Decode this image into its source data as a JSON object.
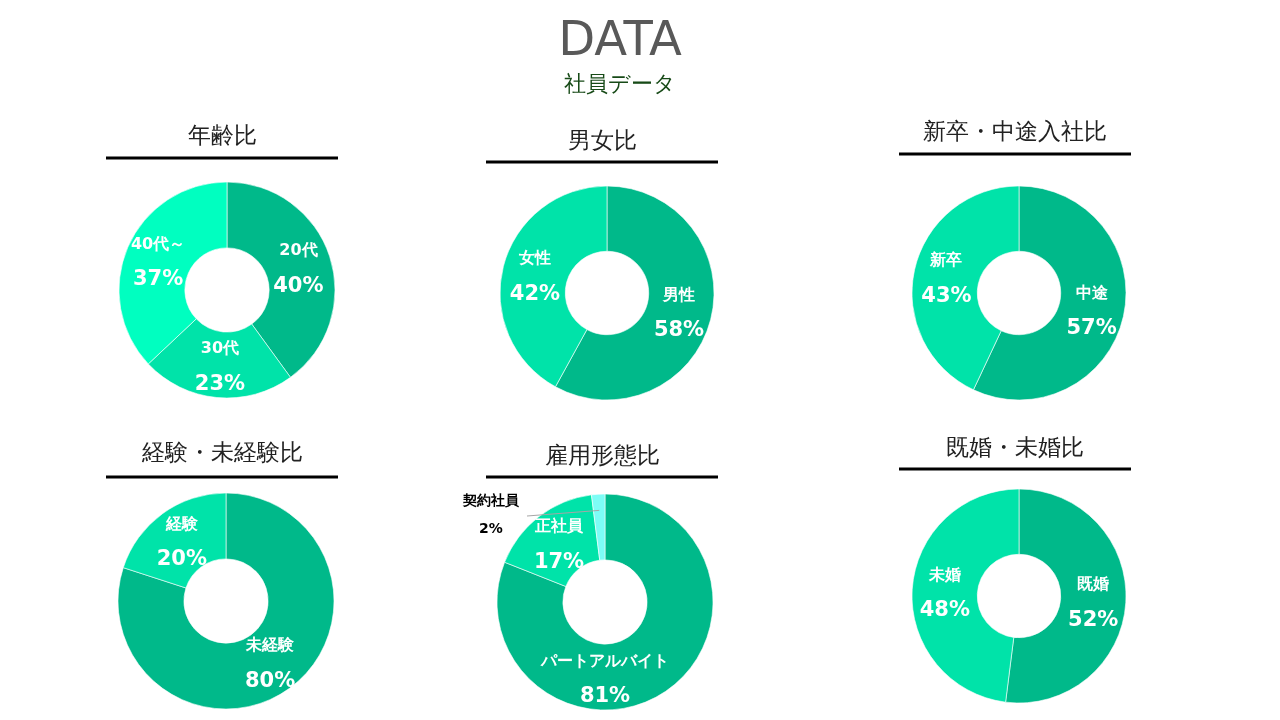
{
  "chart_data": [
    {
      "type": "other",
      "title": "DATA",
      "subtitle": "社員データ"
    },
    {
      "type": "donut",
      "title": "年齢比",
      "categories": [
        "20代",
        "30代",
        "40代～"
      ],
      "values": [
        40,
        23,
        37
      ],
      "colors": [
        "#00b98a",
        "#00e3a9",
        "#00ffc0"
      ],
      "value_labels": [
        "40%",
        "23%",
        "37%"
      ]
    },
    {
      "type": "donut",
      "title": "男女比",
      "categories": [
        "男性",
        "女性"
      ],
      "values": [
        58,
        42
      ],
      "colors": [
        "#00b98a",
        "#00e3a9"
      ],
      "value_labels": [
        "58%",
        "42%"
      ]
    },
    {
      "type": "donut",
      "title": "新卒・中途入社比",
      "categories": [
        "中途",
        "新卒"
      ],
      "values": [
        57,
        43
      ],
      "colors": [
        "#00b98a",
        "#00e3a9"
      ],
      "value_labels": [
        "57%",
        "43%"
      ]
    },
    {
      "type": "donut",
      "title": "経験・未経験比",
      "categories": [
        "未経験",
        "経験"
      ],
      "values": [
        80,
        20
      ],
      "colors": [
        "#00b98a",
        "#00e3a9"
      ],
      "value_labels": [
        "80%",
        "20%"
      ]
    },
    {
      "type": "donut",
      "title": "雇用形態比",
      "categories": [
        "パートアルバイト",
        "正社員",
        "契約社員"
      ],
      "values": [
        81,
        17,
        2
      ],
      "colors": [
        "#00b98a",
        "#00e3a9",
        "#7dfdf6"
      ],
      "value_labels": [
        "81%",
        "17%",
        "2%"
      ]
    },
    {
      "type": "donut",
      "title": "既婚・未婚比",
      "categories": [
        "既婚",
        "未婚"
      ],
      "values": [
        52,
        48
      ],
      "colors": [
        "#00b98a",
        "#00e3a9"
      ],
      "value_labels": [
        "52%",
        "48%"
      ]
    }
  ]
}
